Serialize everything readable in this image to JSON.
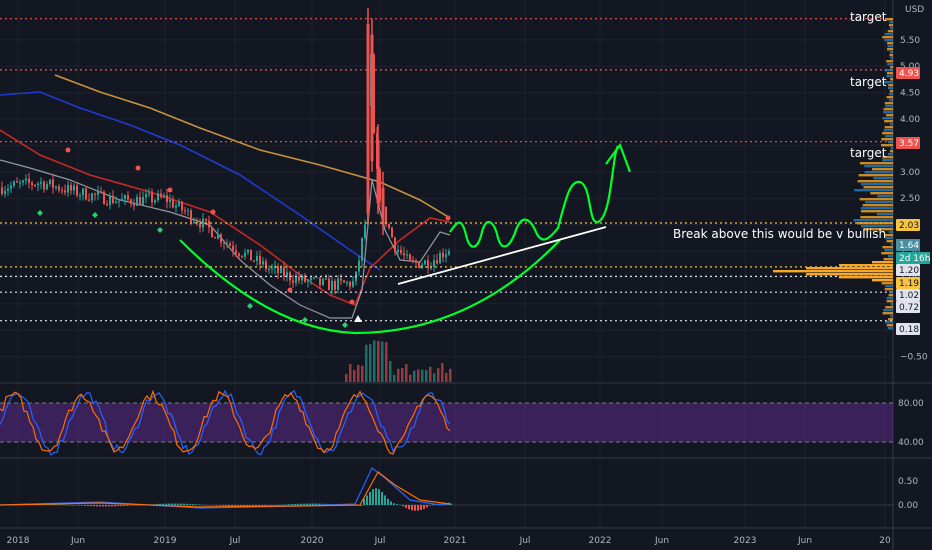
{
  "chart_data": {
    "type": "candlestick",
    "currency": "USD",
    "y_ticks": [
      "5.50",
      "5.00",
      "4.50",
      "4.00",
      "3.50",
      "3.00",
      "2.50",
      "2.00",
      "1.50",
      "1.00",
      "0.50",
      "−0.50"
    ],
    "x_ticks": [
      "2018",
      "Jun",
      "2019",
      "Jul",
      "2020",
      "Jul",
      "2021",
      "Jul",
      "2022",
      "Jun",
      "2023",
      "Jun",
      "20"
    ],
    "level_tags": [
      {
        "label": "4.93",
        "color": "#ef5350"
      },
      {
        "label": "3.57",
        "color": "#ef5350"
      },
      {
        "label": "2.03",
        "color": "#f7c340"
      },
      {
        "label": "1.64",
        "color": "#4a8ea2"
      },
      {
        "label": "2d 16h",
        "color": "#26a69a"
      },
      {
        "label": "1.20",
        "color": "#e0e3eb"
      },
      {
        "label": "1.19",
        "color": "#f7c340"
      },
      {
        "label": "1.02",
        "color": "#e0e3eb"
      },
      {
        "label": "0.72",
        "color": "#e0e3eb"
      },
      {
        "label": "0.18",
        "color": "#e0e3eb"
      }
    ],
    "price_levels": [
      {
        "value": 5.9,
        "color": "#ef5350"
      },
      {
        "value": 4.93,
        "color": "#ef5350"
      },
      {
        "value": 3.57,
        "color": "#ef5350"
      },
      {
        "value": 2.03,
        "color": "#f7c340"
      },
      {
        "value": 1.2,
        "color": "#f7c340"
      },
      {
        "value": 1.02,
        "color": "#e0e3eb"
      },
      {
        "value": 0.72,
        "color": "#e0e3eb"
      },
      {
        "value": 0.18,
        "color": "#e0e3eb"
      }
    ],
    "annotations": [
      "target",
      "target",
      "target",
      "Break above this would be v bullish"
    ],
    "stoch_ticks": [
      "80.00",
      "40.00"
    ],
    "macd_ticks": [
      "0.50",
      "0.00"
    ],
    "series": [
      {
        "name": "price",
        "color_up": "#26a69a",
        "color_down": "#ef5350"
      }
    ]
  }
}
